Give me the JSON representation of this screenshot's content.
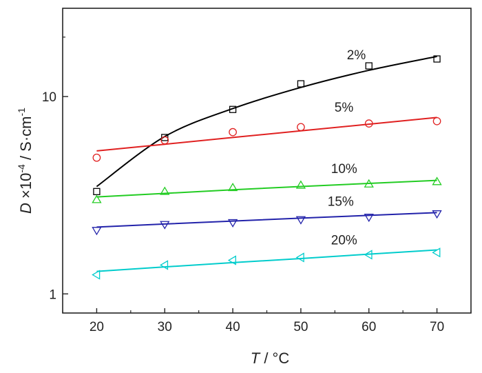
{
  "chart_data": {
    "type": "scatter",
    "title": "",
    "xlabel": {
      "var": "T",
      "rest": " / °C"
    },
    "ylabel": {
      "var": "D",
      "mult": " ×10",
      "exp": "-4",
      "unit": " / S·cm",
      "uexp": "-1"
    },
    "xlim": [
      15,
      75
    ],
    "ylim": [
      0.8,
      28
    ],
    "yscale": "log",
    "x_ticks": [
      "20",
      "30",
      "40",
      "50",
      "60",
      "70"
    ],
    "y_ticks": [
      "1",
      "10"
    ],
    "grid": false,
    "legend": "none",
    "series": [
      {
        "name": "2%",
        "marker": "square",
        "color": "#000000",
        "x": [
          20,
          30,
          40,
          50,
          60,
          70
        ],
        "y": [
          3.3,
          6.2,
          8.6,
          11.6,
          14.3,
          15.5
        ],
        "fit": [
          3.5,
          6.27,
          8.69,
          11.12,
          13.58,
          15.96
        ]
      },
      {
        "name": "5%",
        "marker": "circle",
        "color": "#e02020",
        "x": [
          20,
          30,
          40,
          50,
          60,
          70
        ],
        "y": [
          4.9,
          6.0,
          6.6,
          7.0,
          7.3,
          7.5
        ],
        "fit": [
          5.3,
          5.73,
          6.2,
          6.7,
          7.24,
          7.83
        ]
      },
      {
        "name": "10%",
        "marker": "triangle-up",
        "color": "#22cc22",
        "x": [
          20,
          30,
          40,
          50,
          60,
          70
        ],
        "y": [
          3.0,
          3.3,
          3.45,
          3.55,
          3.6,
          3.7
        ],
        "fit": [
          3.1,
          3.23,
          3.37,
          3.5,
          3.63,
          3.76
        ]
      },
      {
        "name": "15%",
        "marker": "triangle-down",
        "color": "#2222aa",
        "x": [
          20,
          30,
          40,
          50,
          60,
          70
        ],
        "y": [
          2.1,
          2.25,
          2.3,
          2.38,
          2.45,
          2.55
        ],
        "fit": [
          2.18,
          2.26,
          2.34,
          2.42,
          2.5,
          2.58
        ]
      },
      {
        "name": "20%",
        "marker": "triangle-left",
        "color": "#00cccc",
        "x": [
          20,
          30,
          40,
          50,
          60,
          70
        ],
        "y": [
          1.25,
          1.4,
          1.48,
          1.53,
          1.58,
          1.62
        ],
        "fit": [
          1.3,
          1.37,
          1.44,
          1.51,
          1.59,
          1.67
        ]
      }
    ]
  }
}
